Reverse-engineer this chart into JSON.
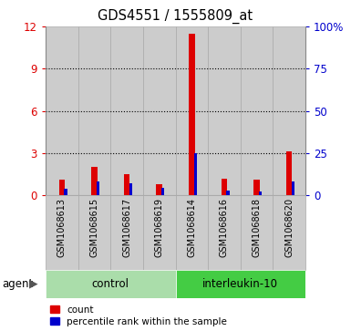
{
  "title": "GDS4551 / 1555809_at",
  "samples": [
    "GSM1068613",
    "GSM1068615",
    "GSM1068617",
    "GSM1068619",
    "GSM1068614",
    "GSM1068616",
    "GSM1068618",
    "GSM1068620"
  ],
  "groups": [
    "control",
    "control",
    "control",
    "control",
    "interleukin-10",
    "interleukin-10",
    "interleukin-10",
    "interleukin-10"
  ],
  "count_values": [
    1.1,
    2.0,
    1.5,
    0.8,
    11.5,
    1.2,
    1.1,
    3.1
  ],
  "percentile_values": [
    4.0,
    8.0,
    7.0,
    4.5,
    25.0,
    3.0,
    2.5,
    8.0
  ],
  "ylim_left": [
    0,
    12
  ],
  "ylim_right": [
    0,
    100
  ],
  "yticks_left": [
    0,
    3,
    6,
    9,
    12
  ],
  "ytick_labels_left": [
    "0",
    "3",
    "6",
    "9",
    "12"
  ],
  "yticks_right": [
    0,
    25,
    50,
    75,
    100
  ],
  "ytick_labels_right": [
    "0",
    "25",
    "50",
    "75",
    "100%"
  ],
  "count_color": "#dd0000",
  "percentile_color": "#0000cc",
  "bar_bg_color": "#cccccc",
  "bar_bg_edge_color": "#aaaaaa",
  "control_color": "#aaddaa",
  "il10_color": "#44cc44",
  "agent_label": "agent",
  "legend_count": "count",
  "legend_percentile": "percentile rank within the sample",
  "grid_color": "black",
  "grid_style": ":",
  "grid_ticks": [
    3,
    6,
    9
  ],
  "figsize": [
    3.85,
    3.63
  ],
  "dpi": 100
}
